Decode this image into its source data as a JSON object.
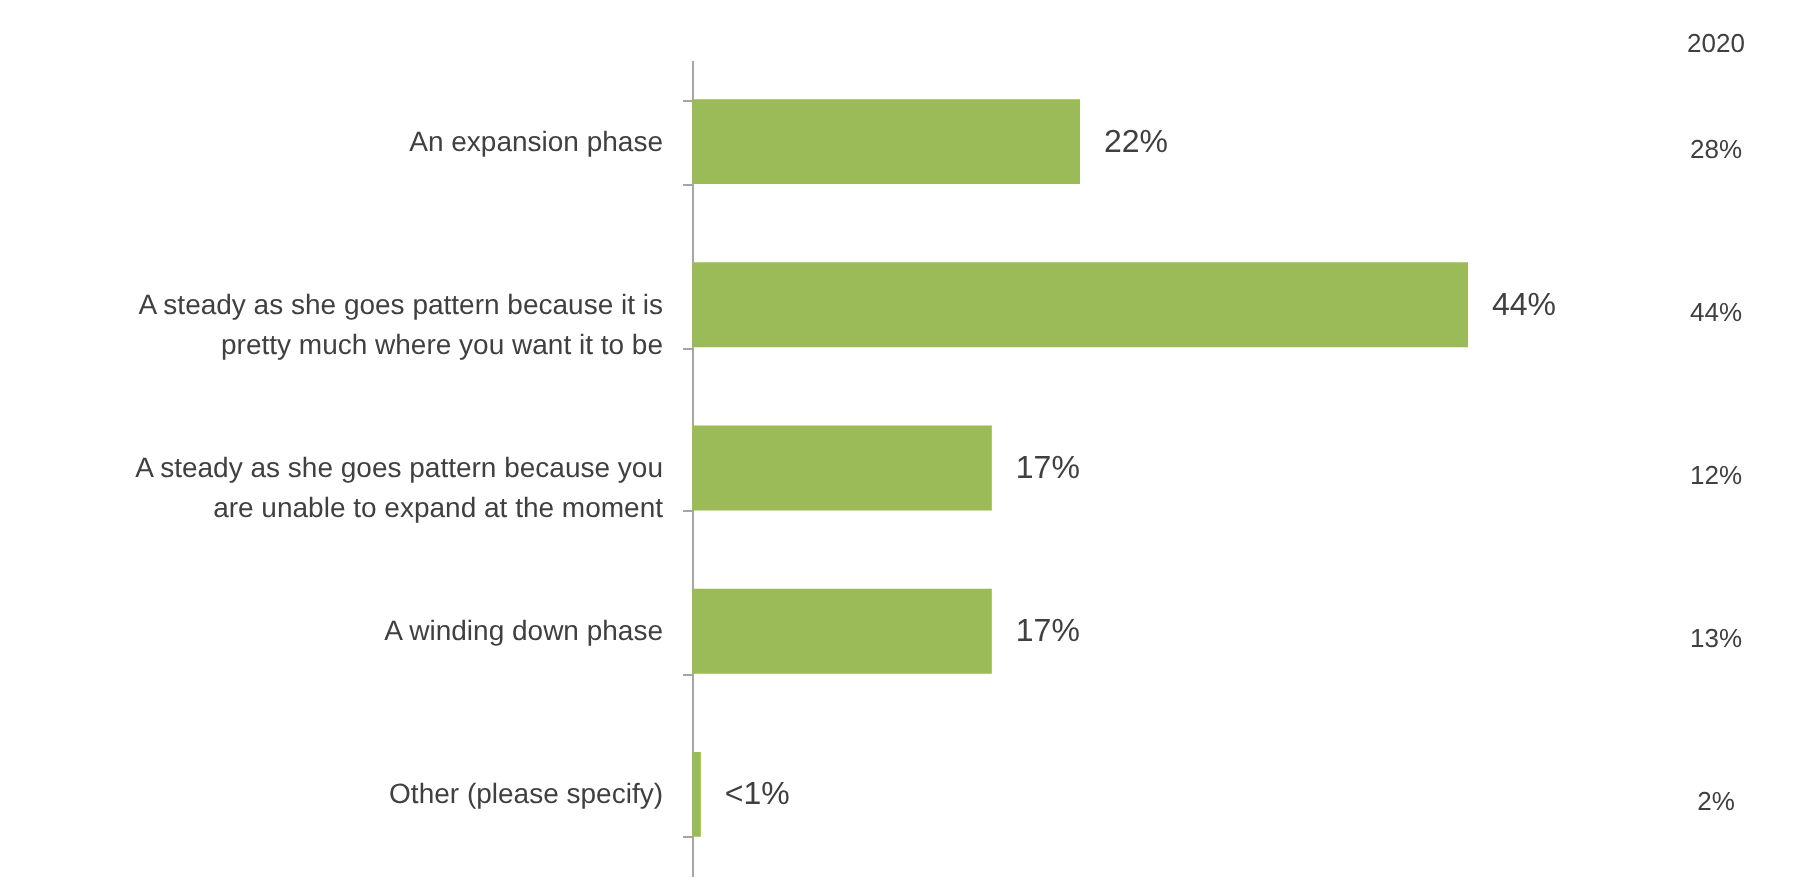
{
  "chart_data": {
    "type": "bar",
    "orientation": "horizontal",
    "categories": [
      "An expansion phase",
      "A steady as she goes pattern because it is pretty much where you want it to be",
      "A steady as she goes pattern because you are unable to expand at the moment",
      "A winding down phase",
      "Other (please specify)"
    ],
    "values": [
      22,
      44,
      17,
      17,
      0.5
    ],
    "value_labels": [
      "22%",
      "44%",
      "17%",
      "17%",
      "<1%"
    ],
    "color": "#9bbb59",
    "annotations": [
      "2020",
      "28%",
      "44%",
      "12%",
      "13%",
      "2%"
    ]
  }
}
